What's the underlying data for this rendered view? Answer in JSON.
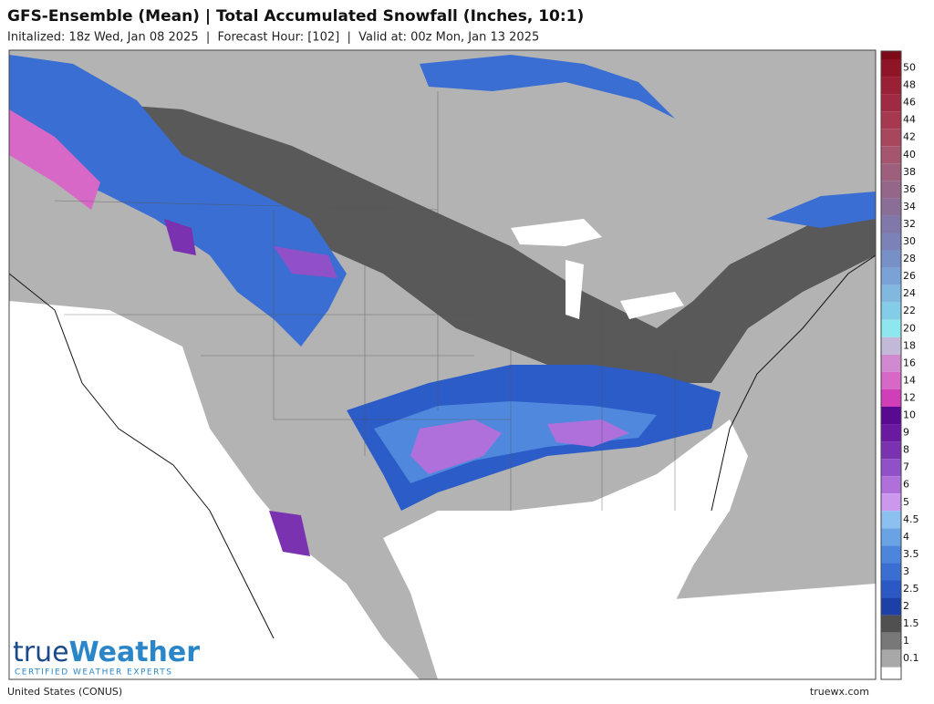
{
  "header": {
    "title": "GFS-Ensemble (Mean) | Total Accumulated Snowfall (Inches, 10:1)",
    "subtitle": "Initalized: 18z Wed, Jan 08 2025  |  Forecast Hour: [102]  |  Valid at: 00z Mon, Jan 13 2025"
  },
  "legend": {
    "top_color": "#7d0a17",
    "bottom_color": "#ffffff",
    "values": [
      50,
      48,
      46,
      44,
      42,
      40,
      38,
      36,
      34,
      32,
      30,
      28,
      26,
      24,
      22,
      20,
      18,
      16,
      14,
      12,
      10,
      9,
      8,
      7,
      6,
      5,
      4.5,
      4,
      3.5,
      3,
      2.5,
      2,
      1.5,
      1,
      0.1
    ],
    "colors": [
      "#8f1426",
      "#9a2035",
      "#a02a42",
      "#a6384f",
      "#a8465e",
      "#a5566e",
      "#9e5f7c",
      "#94678a",
      "#8a6e98",
      "#7f78a8",
      "#7a82b8",
      "#7790c8",
      "#7aa2d6",
      "#80b8e0",
      "#84cde8",
      "#8ce8ee",
      "#c2b8d8",
      "#d08ad0",
      "#d868c8",
      "#d03eb8",
      "#5a0a90",
      "#6a1aa0",
      "#7a32b0",
      "#9050c8",
      "#b070dc",
      "#cc98ee",
      "#8cc0f0",
      "#6aa2e6",
      "#4c86dc",
      "#3a6ed2",
      "#2a58c4",
      "#1c40a8",
      "#505050",
      "#787878",
      "#a8a8a8"
    ]
  },
  "logo": {
    "brand_a": "true",
    "brand_b": "Weather",
    "tagline": "CERTIFIED WEATHER EXPERTS"
  },
  "footer": {
    "region": "United States (CONUS)",
    "site": "truewx.com"
  }
}
